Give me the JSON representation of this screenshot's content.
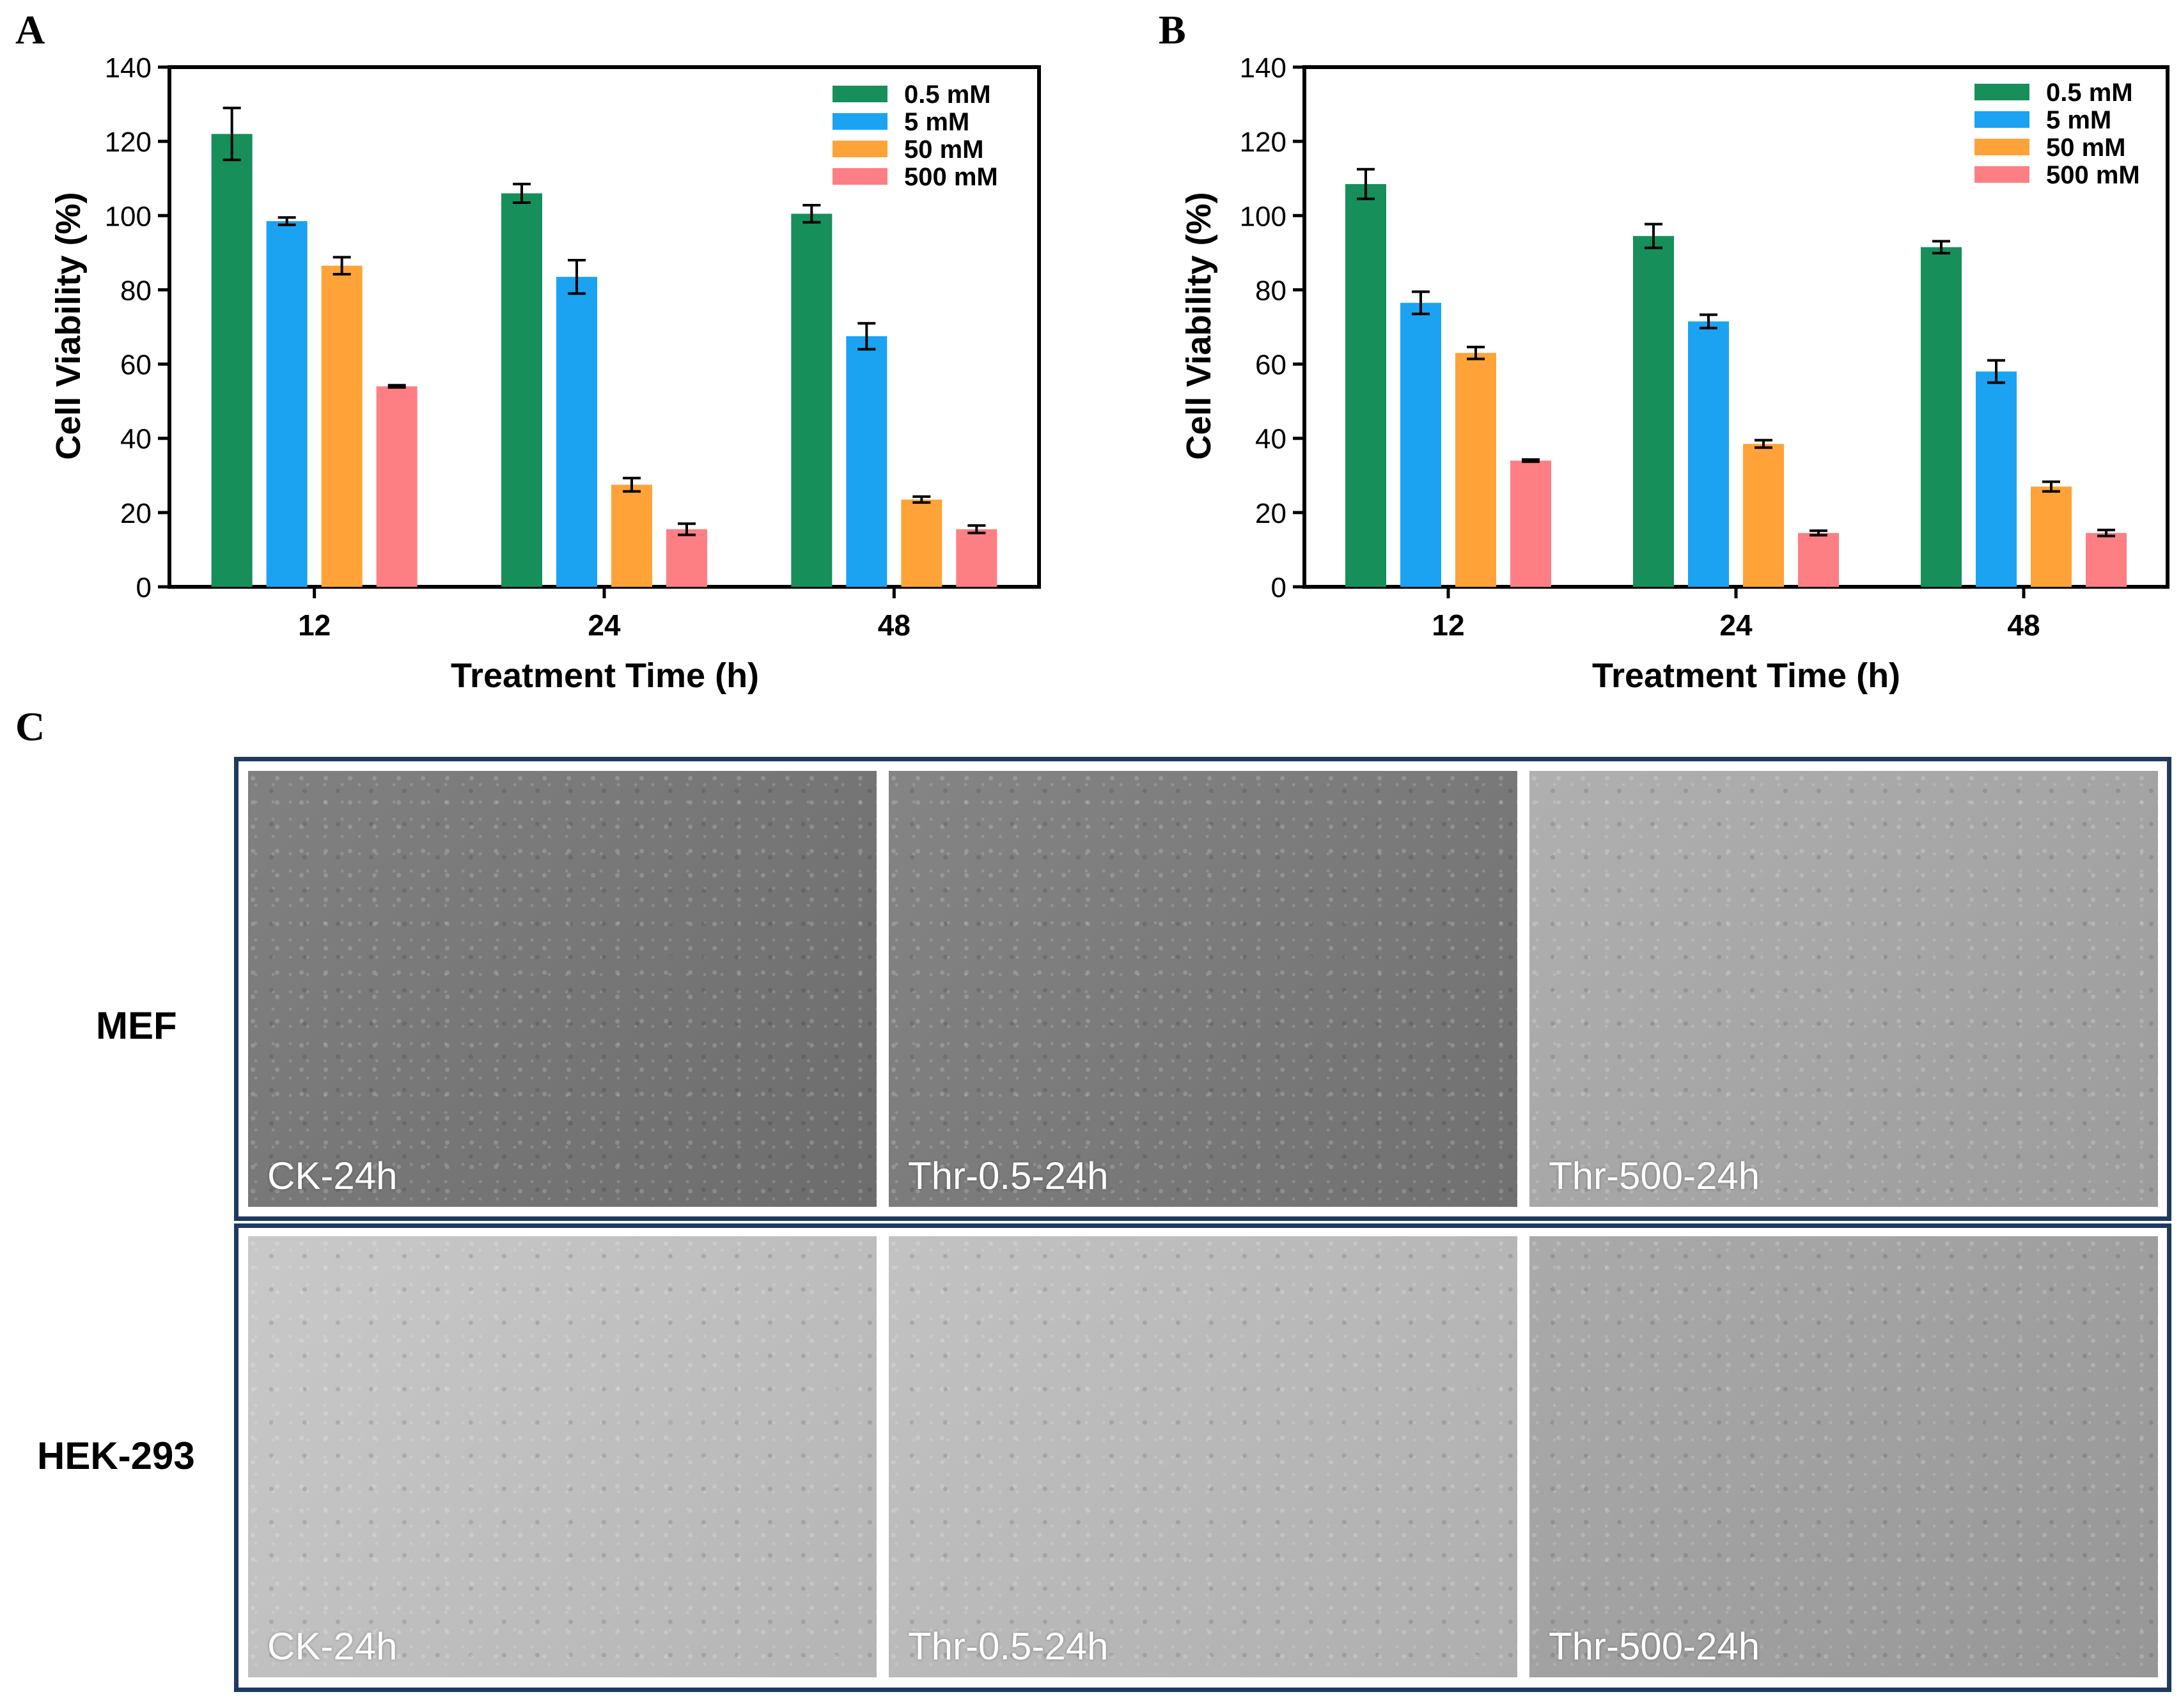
{
  "panel_letters": {
    "a": "A",
    "b": "B",
    "c": "C"
  },
  "chart_data": [
    {
      "type": "bar",
      "panel": "A",
      "xlabel": "Treatment Time (h)",
      "ylabel": "Cell Viability (%)",
      "ylim": [
        0,
        140
      ],
      "yticks": [
        0,
        20,
        40,
        60,
        80,
        100,
        120,
        140
      ],
      "categories": [
        "12",
        "24",
        "48"
      ],
      "legend_position": "top-right",
      "grid": false,
      "series": [
        {
          "name": "0.5 mM",
          "color": "#168f5b",
          "values": [
            122,
            106,
            100.5
          ],
          "errors": [
            7,
            2.5,
            2.3
          ]
        },
        {
          "name": "5 mM",
          "color": "#1ba3f1",
          "values": [
            98.5,
            83.5,
            67.5
          ],
          "errors": [
            1,
            4.5,
            3.5
          ]
        },
        {
          "name": "50 mM",
          "color": "#ffa338",
          "values": [
            86.5,
            27.5,
            23.5
          ],
          "errors": [
            2.3,
            1.8,
            0.8
          ]
        },
        {
          "name": "500 mM",
          "color": "#fe7f83",
          "values": [
            54,
            15.5,
            15.5
          ],
          "errors": [
            0.3,
            1.5,
            1
          ]
        }
      ]
    },
    {
      "type": "bar",
      "panel": "B",
      "xlabel": "Treatment Time (h)",
      "ylabel": "Cell Viability (%)",
      "ylim": [
        0,
        140
      ],
      "yticks": [
        0,
        20,
        40,
        60,
        80,
        100,
        120,
        140
      ],
      "categories": [
        "12",
        "24",
        "48"
      ],
      "legend_position": "top-right",
      "grid": false,
      "series": [
        {
          "name": "0.5 mM",
          "color": "#168f5b",
          "values": [
            108.5,
            94.5,
            91.5
          ],
          "errors": [
            4,
            3.2,
            1.6
          ]
        },
        {
          "name": "5 mM",
          "color": "#1ba3f1",
          "values": [
            76.5,
            71.5,
            58
          ],
          "errors": [
            3,
            1.8,
            3
          ]
        },
        {
          "name": "50 mM",
          "color": "#ffa338",
          "values": [
            63,
            38.5,
            27
          ],
          "errors": [
            1.6,
            1,
            1.3
          ]
        },
        {
          "name": "500 mM",
          "color": "#fe7f83",
          "values": [
            34,
            14.5,
            14.5
          ],
          "errors": [
            0.3,
            0.6,
            0.8
          ]
        }
      ]
    }
  ],
  "micrographs": {
    "rows": [
      {
        "label": "MEF",
        "images": [
          {
            "caption": "CK-24h",
            "tone": "#767676"
          },
          {
            "caption": "Thr-0.5-24h",
            "tone": "#7a7a7a"
          },
          {
            "caption": "Thr-500-24h",
            "tone": "#a9a9a9"
          }
        ]
      },
      {
        "label": "HEK-293",
        "images": [
          {
            "caption": "CK-24h",
            "tone": "#c4c4c4"
          },
          {
            "caption": "Thr-0.5-24h",
            "tone": "#bdbdbd"
          },
          {
            "caption": "Thr-500-24h",
            "tone": "#a3a3a3"
          }
        ]
      }
    ]
  }
}
